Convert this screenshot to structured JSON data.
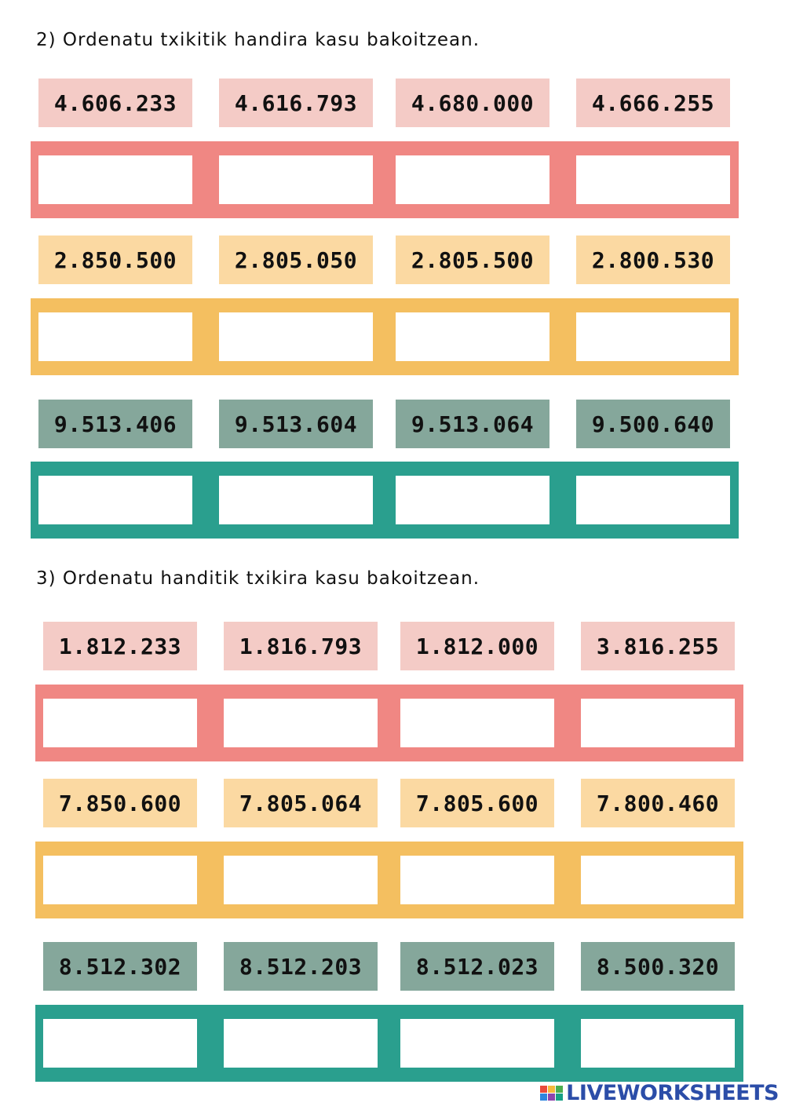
{
  "sections": [
    {
      "heading": "2) Ordenatu txikitik handira kasu bakoitzean.",
      "rows": [
        {
          "color": "pink",
          "numbers": [
            "4.606.233",
            "4.616.793",
            "4.680.000",
            "4.666.255"
          ]
        },
        {
          "color": "yellow",
          "numbers": [
            "2.850.500",
            "2.805.050",
            "2.805.500",
            "2.800.530"
          ]
        },
        {
          "color": "teal",
          "numbers": [
            "9.513.406",
            "9.513.604",
            "9.513.064",
            "9.500.640"
          ]
        }
      ]
    },
    {
      "heading": "3) Ordenatu handitik txikira kasu bakoitzean.",
      "rows": [
        {
          "color": "pink",
          "numbers": [
            "1.812.233",
            "1.816.793",
            "1.812.000",
            "3.816.255"
          ]
        },
        {
          "color": "yellow",
          "numbers": [
            "7.850.600",
            "7.805.064",
            "7.805.600",
            "7.800.460"
          ]
        },
        {
          "color": "teal",
          "numbers": [
            "8.512.302",
            "8.512.203",
            "8.512.023",
            "8.500.320"
          ]
        }
      ]
    }
  ],
  "colors": {
    "pink_number": "#f4cbc6",
    "pink_band": "#f08783",
    "yellow_number": "#fbd9a2",
    "yellow_band": "#f4bf60",
    "teal_number": "#85a79b",
    "teal_band": "#2a9f8e"
  },
  "branding": {
    "logo_text": "LIVEWORKSHEETS",
    "logo_icon": "liveworksheets-logo-icon"
  }
}
